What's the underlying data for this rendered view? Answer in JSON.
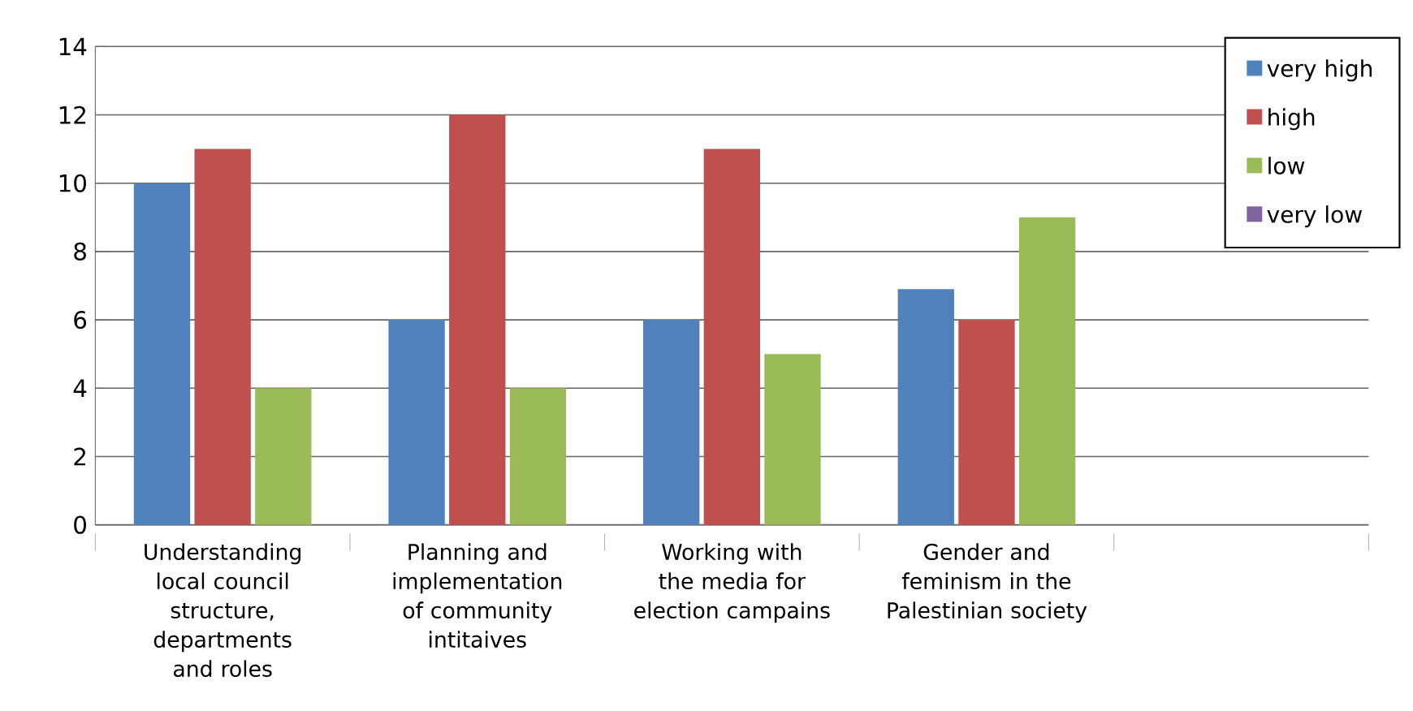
{
  "chart_data": {
    "type": "bar",
    "categories": [
      "Understanding local council structure, departments and roles",
      "Planning and implementation of community intitaives",
      "Working with the media for election campains",
      "Gender and feminism in the Palestinian society",
      null
    ],
    "series": [
      {
        "name": "very high",
        "color": "#4f81bd",
        "values": [
          10,
          6,
          6,
          6.9,
          null
        ]
      },
      {
        "name": "high",
        "color": "#c0504d",
        "values": [
          11,
          12,
          11,
          6,
          null
        ]
      },
      {
        "name": "low",
        "color": "#9bbb59",
        "values": [
          4,
          4,
          5,
          9,
          null
        ]
      },
      {
        "name": "very low",
        "color": "#8064a2",
        "values": [
          null,
          null,
          null,
          null,
          null
        ]
      }
    ],
    "ylim": [
      0,
      14
    ],
    "yticks": [
      0,
      2,
      4,
      6,
      8,
      10,
      12,
      14
    ],
    "grid": "y",
    "legend": "top right"
  }
}
